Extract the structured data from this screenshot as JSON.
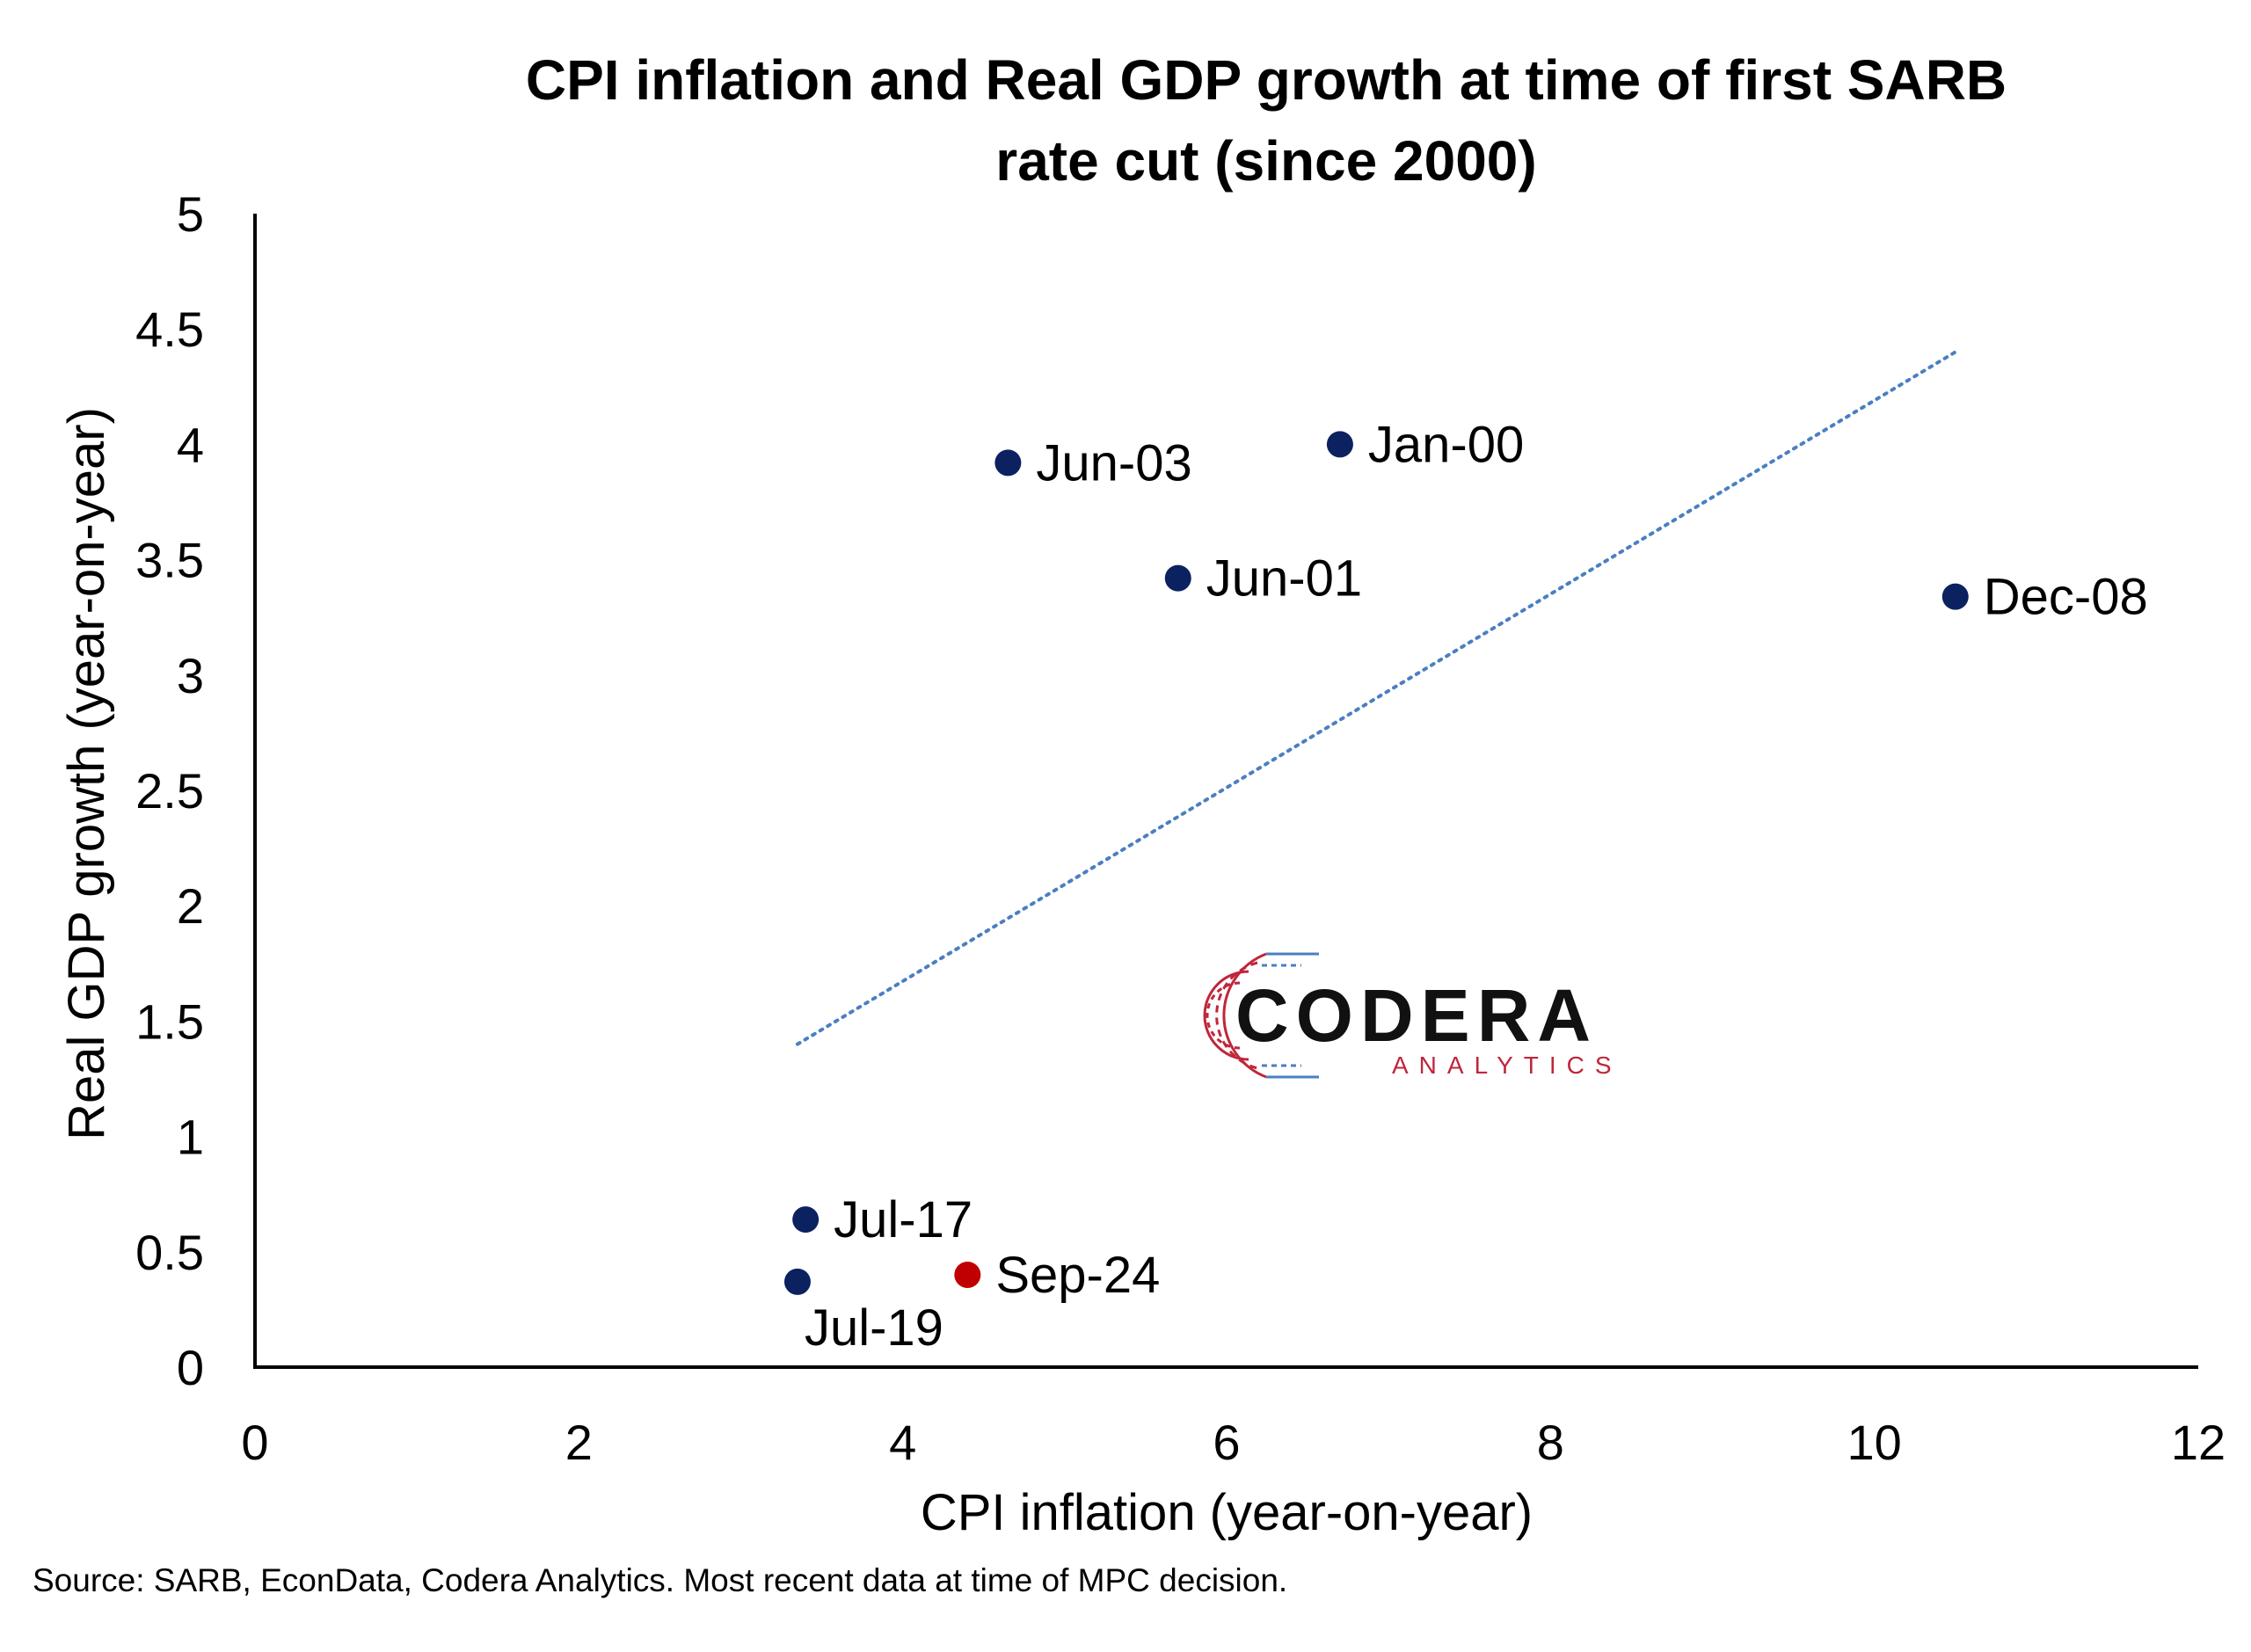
{
  "chart_data": {
    "type": "scatter",
    "title_lines": [
      "CPI inflation and Real GDP growth at time of first SARB",
      "rate cut (since 2000)"
    ],
    "xlabel": "CPI inflation (year-on-year)",
    "ylabel": "Real GDP growth (year-on-year)",
    "xlim": [
      0,
      12
    ],
    "ylim": [
      0,
      5
    ],
    "x_ticks": [
      "0",
      "2",
      "4",
      "6",
      "8",
      "10",
      "12"
    ],
    "y_ticks": [
      "0",
      "0.5",
      "1",
      "1.5",
      "2",
      "2.5",
      "3",
      "3.5",
      "4",
      "4.5",
      "5"
    ],
    "grid": false,
    "points": [
      {
        "label": "Jan-00",
        "x": 6.7,
        "y": 4.0,
        "color": "#0b2160"
      },
      {
        "label": "Jun-01",
        "x": 5.7,
        "y": 3.42,
        "color": "#0b2160"
      },
      {
        "label": "Jun-03",
        "x": 4.65,
        "y": 3.92,
        "color": "#0b2160"
      },
      {
        "label": "Dec-08",
        "x": 10.5,
        "y": 3.34,
        "color": "#0b2160"
      },
      {
        "label": "Jul-17",
        "x": 3.4,
        "y": 0.64,
        "color": "#0b2160"
      },
      {
        "label": "Jul-19",
        "x": 3.35,
        "y": 0.37,
        "color": "#0b2160"
      },
      {
        "label": "Sep-24",
        "x": 4.4,
        "y": 0.4,
        "color": "#c00000"
      }
    ],
    "trendline": {
      "style": "dotted",
      "color": "#4a7fc1",
      "x": [
        3.35,
        10.5
      ],
      "y": [
        1.4,
        4.4
      ]
    },
    "source": "Source: SARB, EconData, Codera Analytics. Most recent data at time of MPC decision."
  },
  "logo": {
    "name": "CODERA",
    "sub": "ANALYTICS",
    "colors": {
      "primary": "#111111",
      "accent_red": "#c0263a",
      "accent_blue": "#4a7fc1"
    }
  }
}
